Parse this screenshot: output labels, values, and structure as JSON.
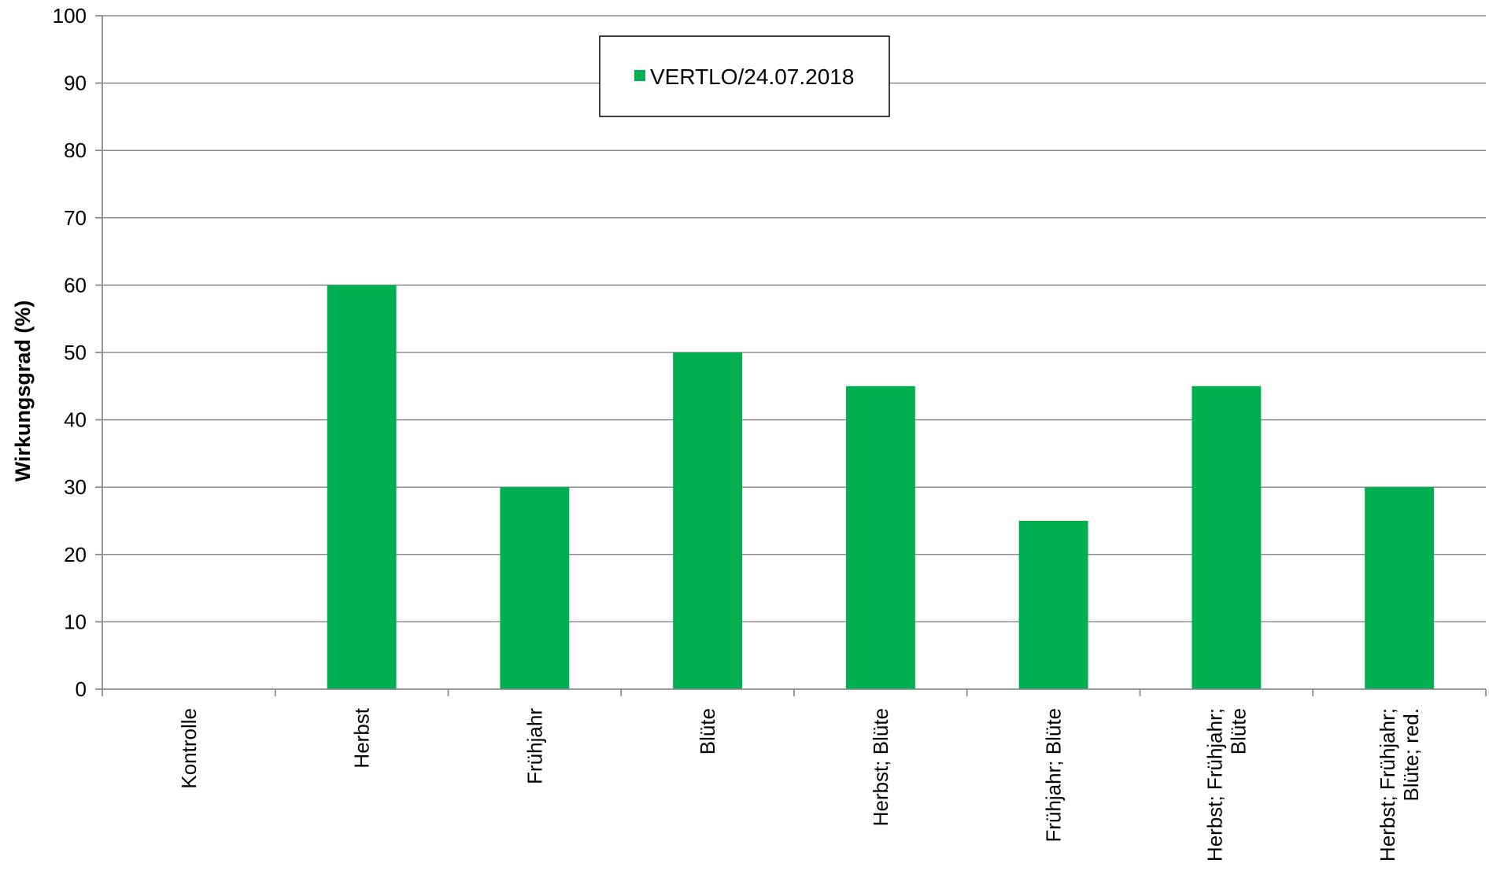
{
  "chart_data": {
    "type": "bar",
    "ylabel": "Wirkungsgrad (%)",
    "xlabel": "",
    "ylim": [
      0,
      100
    ],
    "yticks": [
      0,
      10,
      20,
      30,
      40,
      50,
      60,
      70,
      80,
      90,
      100
    ],
    "grid": true,
    "legend_position": "top-center",
    "categories": [
      [
        "Kontrolle"
      ],
      [
        "Herbst"
      ],
      [
        "Frühjahr"
      ],
      [
        "Blüte"
      ],
      [
        "Herbst; Blüte"
      ],
      [
        "Frühjahr; Blüte"
      ],
      [
        "Herbst; Frühjahr;",
        "Blüte"
      ],
      [
        "Herbst; Frühjahr;",
        "Blüte; red."
      ]
    ],
    "series": [
      {
        "name": "VERTLO/24.07.2018",
        "color": "#00b050",
        "values": [
          0,
          60,
          30,
          50,
          45,
          25,
          45,
          30
        ]
      }
    ]
  }
}
